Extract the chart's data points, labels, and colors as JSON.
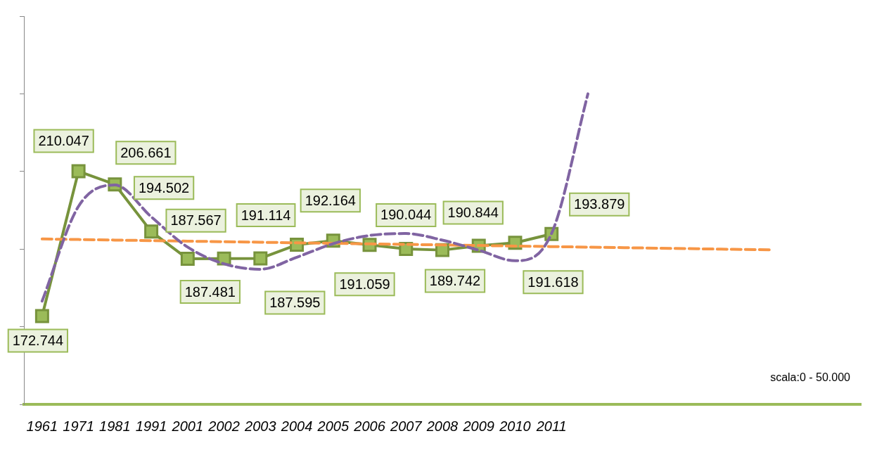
{
  "chart_data": {
    "type": "line",
    "categories": [
      "1961",
      "1971",
      "1981",
      "1991",
      "2001",
      "2002",
      "2003",
      "2004",
      "2005",
      "2006",
      "2007",
      "2008",
      "2009",
      "2010",
      "2011",
      null,
      null,
      null,
      null,
      null,
      null,
      null,
      null
    ],
    "ylim": [
      150000,
      250000
    ],
    "yticks": [
      {
        "value": 150000,
        "label": null
      },
      {
        "value": 170000,
        "label": null
      },
      {
        "value": 190000,
        "label": null
      },
      {
        "value": 210000,
        "label": null
      },
      {
        "value": 230000,
        "label": null
      },
      {
        "value": 250000,
        "label": null
      }
    ],
    "tick_labels": "x",
    "grid": false,
    "legend": false,
    "series": [
      {
        "type": "line",
        "color": "#77933c",
        "marker": "square",
        "line_style": "solid",
        "values": [
          172744,
          210047,
          206661,
          194502,
          187481,
          187567,
          187595,
          191114,
          192164,
          191059,
          190044,
          189742,
          190844,
          191618,
          193879,
          null,
          null,
          null,
          null,
          null,
          null,
          null,
          null
        ],
        "value_labels": [
          "172.744",
          "210.047",
          "206.661",
          "194.502",
          "187.481",
          "187.567",
          "187.595",
          "191.114",
          "192.164",
          "191.059",
          "190.044",
          "189.742",
          "190.844",
          "191.618",
          "193.879",
          null,
          null,
          null,
          null,
          null,
          null,
          null,
          null
        ]
      },
      {
        "type": "line",
        "color": "#f79646",
        "marker": "none",
        "line_style": "dashed",
        "values": [
          192600,
          192460,
          192320,
          192180,
          192040,
          191900,
          191760,
          191620,
          191480,
          191340,
          191200,
          191060,
          190920,
          190780,
          190640,
          190500,
          190360,
          190220,
          190080,
          189940,
          189800,
          null,
          null
        ]
      },
      {
        "type": "line",
        "color": "#8064a2",
        "marker": "none",
        "line_style": "dashed",
        "values": [
          176600,
          201000,
          206500,
          198300,
          190500,
          186200,
          184800,
          187900,
          191400,
          193500,
          194000,
          192300,
          189700,
          187000,
          194000,
          230000,
          null,
          null,
          null,
          null,
          null,
          null,
          null
        ]
      }
    ],
    "annotations": [
      "scala:0 - 50.000"
    ]
  }
}
